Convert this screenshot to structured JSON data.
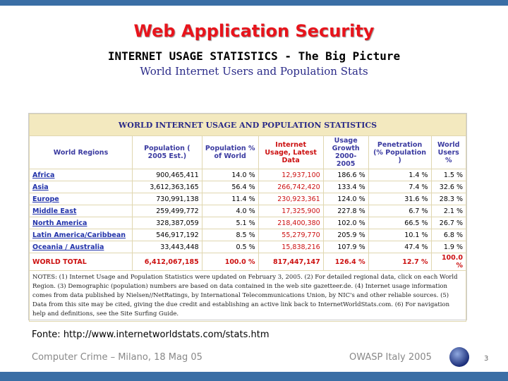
{
  "slide": {
    "title": "Web Application Security",
    "heading": "INTERNET USAGE STATISTICS - The Big Picture",
    "subheading": "World Internet Users and Population Stats",
    "table": {
      "caption": "WORLD INTERNET USAGE AND POPULATION STATISTICS",
      "columns": [
        "World Regions",
        "Population ( 2005 Est.)",
        "Population % of World",
        "Internet Usage, Latest Data",
        "Usage Growth 2000-2005",
        "Penetration (% Population )",
        "World Users %"
      ],
      "rows": [
        [
          "Africa",
          "900,465,411",
          "14.0 %",
          "12,937,100",
          "186.6 %",
          "1.4 %",
          "1.5 %"
        ],
        [
          "Asia",
          "3,612,363,165",
          "56.4 %",
          "266,742,420",
          "133.4 %",
          "7.4 %",
          "32.6 %"
        ],
        [
          "Europe",
          "730,991,138",
          "11.4 %",
          "230,923,361",
          "124.0 %",
          "31.6 %",
          "28.3 %"
        ],
        [
          "Middle East",
          "259,499,772",
          "4.0 %",
          "17,325,900",
          "227.8 %",
          "6.7 %",
          "2.1 %"
        ],
        [
          "North America",
          "328,387,059",
          "5.1 %",
          "218,400,380",
          "102.0 %",
          "66.5 %",
          "26.7 %"
        ],
        [
          "Latin America/Caribbean",
          "546,917,192",
          "8.5 %",
          "55,279,770",
          "205.9 %",
          "10.1 %",
          "6.8 %"
        ],
        [
          "Oceania / Australia",
          "33,443,448",
          "0.5 %",
          "15,838,216",
          "107.9 %",
          "47.4 %",
          "1.9 %"
        ],
        [
          "WORLD TOTAL",
          "6,412,067,185",
          "100.0 %",
          "817,447,147",
          "126.4 %",
          "12.7 %",
          "100.0 %"
        ]
      ],
      "notes": "NOTES: (1) Internet Usage and Population Statistics were updated on February 3, 2005. (2) For detailed regional data, click on each World Region. (3) Demographic (population) numbers are based on data contained in the web site gazetteer.de. (4) Internet usage information comes from data published by Nielsen//NetRatings, by International Telecommunications Union, by NIC's and other reliable sources. (5) Data from this site may be cited, giving the due credit and establishing an active link back to InternetWorldStats.com. (6) For navigation help and definitions, see the Site Surfing Guide."
    },
    "source": "Fonte: http://www.internetworldstats.com/stats.htm",
    "footer_left": "Computer Crime – Milano, 18 Mag 05",
    "footer_right": "OWASP Italy 2005",
    "page": "3"
  }
}
